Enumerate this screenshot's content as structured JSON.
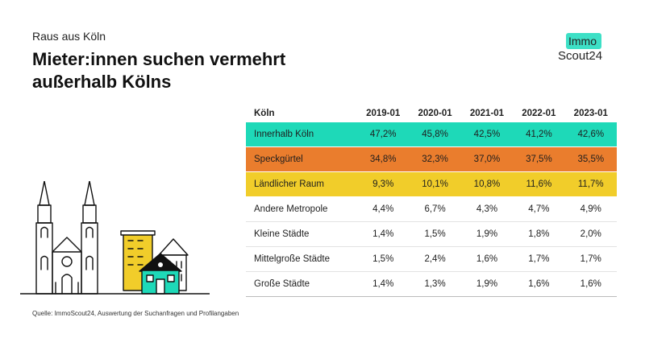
{
  "header": {
    "kicker": "Raus aus Köln",
    "title": "Mieter:innen suchen vermehrt außerhalb Kölns"
  },
  "logo": {
    "line1": "Immo",
    "line2": "Scout24",
    "accent": "#3de0c6"
  },
  "table": {
    "columns": [
      "Köln",
      "2019-01",
      "2020-01",
      "2021-01",
      "2022-01",
      "2023-01"
    ],
    "rows": [
      {
        "label": "Innerhalb Köln",
        "color": "#1ed9b8",
        "values": [
          "47,2%",
          "45,8%",
          "42,5%",
          "41,2%",
          "42,6%"
        ]
      },
      {
        "label": "Speckgürtel",
        "color": "#ea7d2d",
        "values": [
          "34,8%",
          "32,3%",
          "37,0%",
          "37,5%",
          "35,5%"
        ]
      },
      {
        "label": "Ländlicher Raum",
        "color": "#f1cd2a",
        "values": [
          "9,3%",
          "10,1%",
          "10,8%",
          "11,6%",
          "11,7%"
        ]
      },
      {
        "label": "Andere Metropole",
        "values": [
          "4,4%",
          "6,7%",
          "4,3%",
          "4,7%",
          "4,9%"
        ]
      },
      {
        "label": "Kleine Städte",
        "values": [
          "1,4%",
          "1,5%",
          "1,9%",
          "1,8%",
          "2,0%"
        ]
      },
      {
        "label": "Mittelgroße Städte",
        "values": [
          "1,5%",
          "2,4%",
          "1,6%",
          "1,7%",
          "1,7%"
        ]
      },
      {
        "label": "Große Städte",
        "values": [
          "1,4%",
          "1,3%",
          "1,9%",
          "1,6%",
          "1,6%"
        ]
      }
    ]
  },
  "source": "Quelle: ImmoScout24, Auswertung der Suchanfragen und Profilangaben",
  "illustration": {
    "icons": [
      "cathedral-icon",
      "apartment-building-icon",
      "house-icon"
    ]
  }
}
